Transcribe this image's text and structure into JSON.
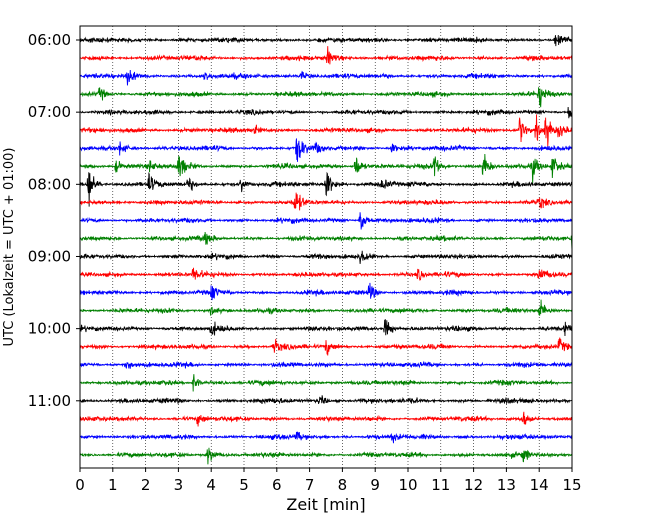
{
  "chart_data": {
    "type": "line",
    "xlabel": "Zeit  [min]",
    "ylabel": "UTC (Lokalzeit = UTC + 01:00)",
    "xlim": [
      0,
      15
    ],
    "x_ticks": [
      "0",
      "1",
      "2",
      "3",
      "4",
      "5",
      "6",
      "7",
      "8",
      "9",
      "10",
      "11",
      "12",
      "13",
      "14",
      "15"
    ],
    "y_tick_labels": [
      "06:00",
      "07:00",
      "08:00",
      "09:00",
      "10:00",
      "11:00"
    ],
    "y_tick_trace_index": [
      0,
      4,
      8,
      12,
      16,
      20
    ],
    "trace_interval_min": 15,
    "grid": "vertical dotted",
    "trace_colors": [
      "#000000",
      "#ff0000",
      "#0000ff",
      "#008000"
    ],
    "traces": [
      {
        "start": "06:00",
        "color": "#000000",
        "events": [
          [
            14.5,
            0.55
          ]
        ]
      },
      {
        "start": "06:15",
        "color": "#ff0000",
        "events": [
          [
            7.55,
            0.6
          ]
        ]
      },
      {
        "start": "06:30",
        "color": "#0000ff",
        "events": [
          [
            1.45,
            0.45
          ],
          [
            6.7,
            0.6
          ],
          [
            3.8,
            0.35
          ]
        ]
      },
      {
        "start": "06:45",
        "color": "#008000",
        "events": [
          [
            0.6,
            0.45
          ],
          [
            14.0,
            0.9
          ]
        ]
      },
      {
        "start": "07:00",
        "color": "#000000",
        "events": [
          [
            14.9,
            0.45
          ]
        ]
      },
      {
        "start": "07:15",
        "color": "#ff0000",
        "events": [
          [
            5.3,
            0.35
          ],
          [
            13.4,
            1.0
          ],
          [
            13.9,
            0.8
          ],
          [
            14.2,
            1.1
          ],
          [
            14.6,
            0.5
          ]
        ]
      },
      {
        "start": "07:30",
        "color": "#0000ff",
        "events": [
          [
            1.2,
            0.5
          ],
          [
            6.6,
            1.3
          ],
          [
            9.5,
            0.4
          ],
          [
            7.2,
            0.35
          ]
        ]
      },
      {
        "start": "07:45",
        "color": "#008000",
        "events": [
          [
            3.0,
            0.85
          ],
          [
            8.4,
            0.9
          ],
          [
            10.8,
            0.9
          ],
          [
            12.3,
            0.9
          ],
          [
            13.8,
            0.7
          ],
          [
            14.4,
            0.8
          ],
          [
            1.1,
            0.45
          ],
          [
            2.1,
            0.4
          ]
        ]
      },
      {
        "start": "08:00",
        "color": "#000000",
        "events": [
          [
            0.25,
            1.3
          ],
          [
            7.5,
            1.2
          ],
          [
            2.1,
            0.6
          ],
          [
            3.3,
            0.45
          ],
          [
            4.9,
            0.5
          ],
          [
            9.2,
            0.5
          ]
        ]
      },
      {
        "start": "08:15",
        "color": "#ff0000",
        "events": [
          [
            6.55,
            0.9
          ],
          [
            14.0,
            0.35
          ]
        ]
      },
      {
        "start": "08:30",
        "color": "#0000ff",
        "events": [
          [
            8.55,
            0.8
          ]
        ]
      },
      {
        "start": "08:45",
        "color": "#008000",
        "events": [
          [
            15.0,
            1.0
          ],
          [
            3.8,
            0.35
          ]
        ]
      },
      {
        "start": "09:00",
        "color": "#000000",
        "events": [
          [
            8.55,
            0.45
          ]
        ]
      },
      {
        "start": "09:15",
        "color": "#ff0000",
        "events": [
          [
            3.45,
            0.55
          ],
          [
            10.3,
            0.4
          ],
          [
            14.0,
            0.45
          ]
        ]
      },
      {
        "start": "09:30",
        "color": "#0000ff",
        "events": [
          [
            8.8,
            0.85
          ],
          [
            4.0,
            0.4
          ]
        ]
      },
      {
        "start": "09:45",
        "color": "#008000",
        "events": [
          [
            14.0,
            0.75
          ],
          [
            4.0,
            0.35
          ]
        ]
      },
      {
        "start": "10:00",
        "color": "#000000",
        "events": [
          [
            9.3,
            0.7
          ],
          [
            4.0,
            0.4
          ],
          [
            14.8,
            0.35
          ]
        ]
      },
      {
        "start": "10:15",
        "color": "#ff0000",
        "events": [
          [
            5.9,
            0.55
          ],
          [
            7.5,
            0.5
          ],
          [
            14.6,
            0.55
          ]
        ]
      },
      {
        "start": "10:30",
        "color": "#0000ff",
        "events": [
          [
            1.4,
            0.35
          ]
        ]
      },
      {
        "start": "10:45",
        "color": "#008000",
        "events": [
          [
            3.45,
            0.6
          ]
        ]
      },
      {
        "start": "11:00",
        "color": "#000000",
        "events": [
          [
            7.3,
            0.35
          ]
        ]
      },
      {
        "start": "11:15",
        "color": "#ff0000",
        "events": [
          [
            3.6,
            0.5
          ],
          [
            13.5,
            0.55
          ]
        ]
      },
      {
        "start": "11:30",
        "color": "#0000ff",
        "events": [
          [
            6.6,
            0.35
          ],
          [
            9.5,
            0.35
          ]
        ]
      },
      {
        "start": "11:45",
        "color": "#008000",
        "events": [
          [
            3.9,
            0.65
          ],
          [
            13.5,
            0.5
          ]
        ]
      }
    ]
  }
}
